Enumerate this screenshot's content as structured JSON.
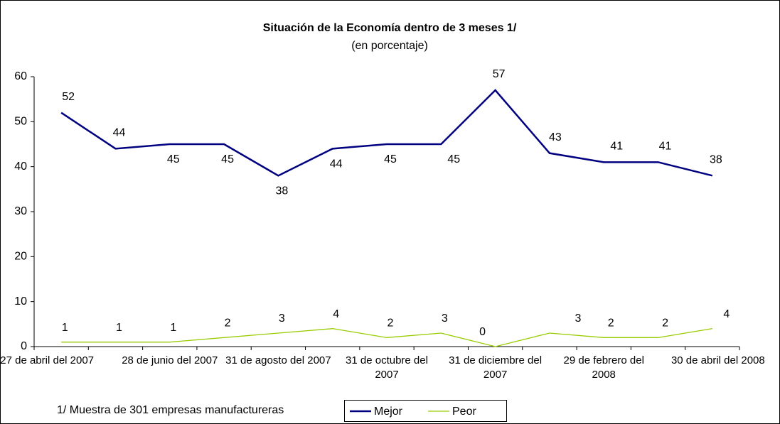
{
  "chart_data": {
    "type": "line",
    "title": "Situación de la Economía dentro de 3 meses 1/",
    "subtitle": "(en porcentaje)",
    "footnote": "1/ Muestra de 301 empresas manufactureras",
    "categories": [
      "27 de abril del 2007",
      null,
      "28 de junio del 2007",
      null,
      "31 de agosto del 2007",
      null,
      "31 de octubre del 2007",
      null,
      "31 de diciembre del 2007",
      null,
      "29 de febrero del 2008",
      null,
      "30 de abril del 2008"
    ],
    "series": [
      {
        "name": "Mejor",
        "color": "#000080",
        "values": [
          52,
          44,
          45,
          45,
          38,
          44,
          45,
          45,
          57,
          43,
          41,
          41,
          38
        ]
      },
      {
        "name": "Peor",
        "color": "#99cc00",
        "values": [
          1,
          1,
          1,
          2,
          3,
          4,
          2,
          3,
          0,
          3,
          2,
          2,
          4
        ]
      }
    ],
    "ylim": [
      0,
      60
    ],
    "yticks": [
      0,
      10,
      20,
      30,
      40,
      50,
      60
    ],
    "grid": false,
    "legend": "bottom"
  }
}
